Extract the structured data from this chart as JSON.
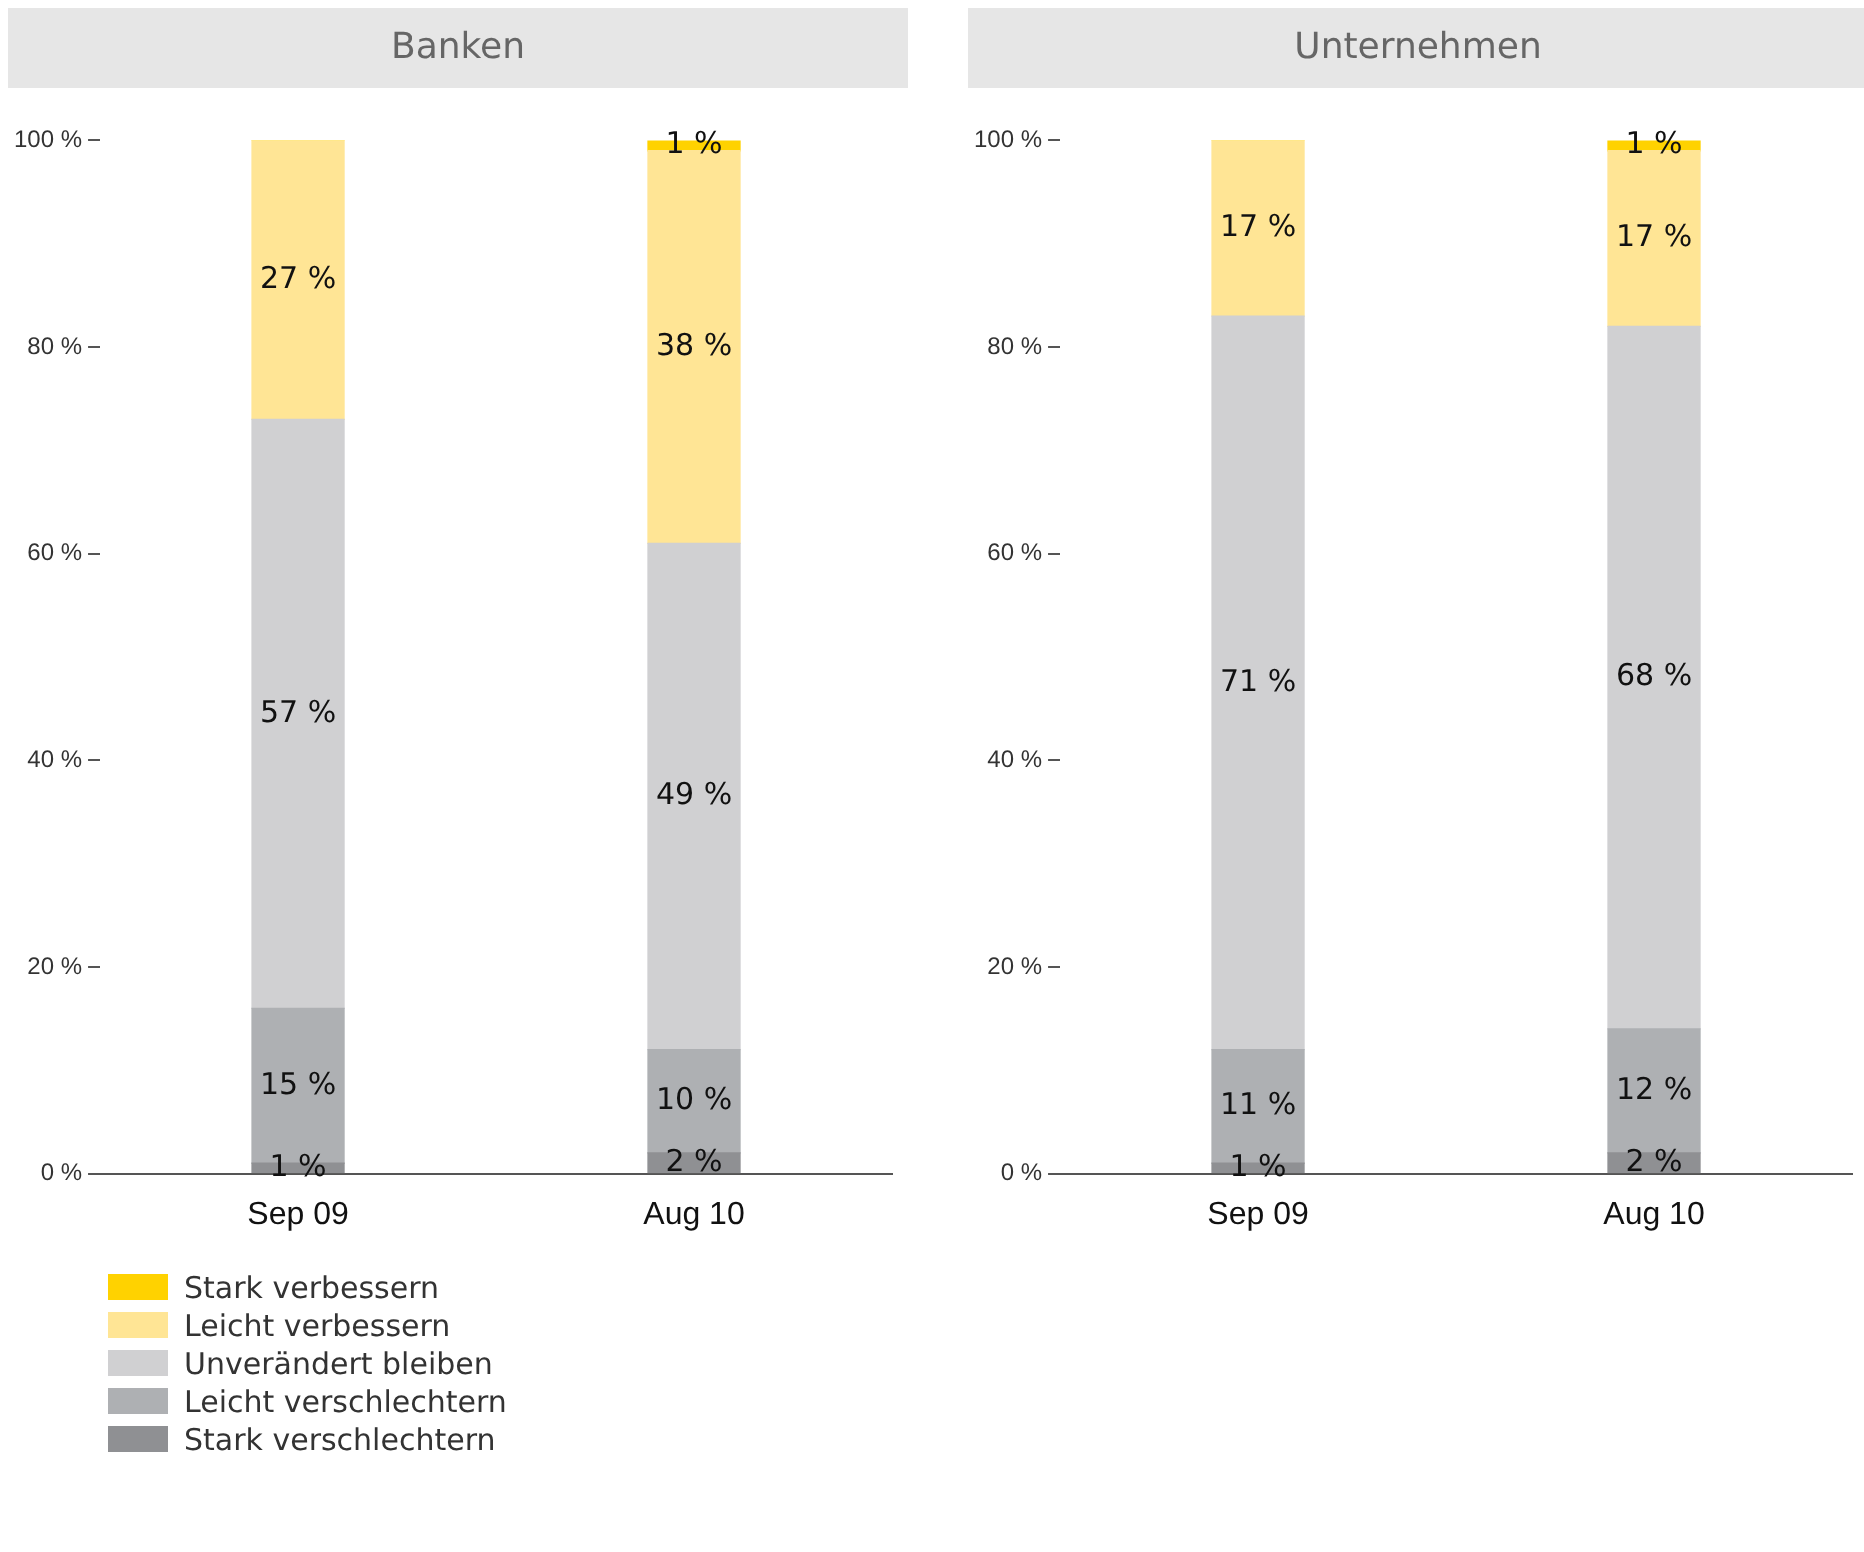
{
  "chart_data": [
    {
      "type": "bar",
      "title": "Banken",
      "categories": [
        "Sep 09",
        "Aug 10"
      ],
      "stacked": true,
      "ylim": [
        0,
        100
      ],
      "yticks": [
        {
          "value": 0,
          "label": "0 %"
        },
        {
          "value": 20,
          "label": "20 %"
        },
        {
          "value": 40,
          "label": "40 %"
        },
        {
          "value": 60,
          "label": "60 %"
        },
        {
          "value": 80,
          "label": "80 %"
        },
        {
          "value": 100,
          "label": "100 %"
        }
      ],
      "legend": "bottom",
      "series": [
        {
          "name": "Stark verschlechtern",
          "color": "#8f9093",
          "values": [
            1,
            2
          ],
          "value_labels": [
            "1 %",
            "2 %"
          ]
        },
        {
          "name": "Leicht verschlechtern",
          "color": "#aeb0b3",
          "values": [
            15,
            10
          ],
          "value_labels": [
            "15 %",
            "10 %"
          ]
        },
        {
          "name": "Unverändert bleiben",
          "color": "#d0d0d2",
          "values": [
            57,
            49
          ],
          "value_labels": [
            "57 %",
            "49 %"
          ]
        },
        {
          "name": "Leicht verbessern",
          "color": "#ffe595",
          "values": [
            27,
            38
          ],
          "value_labels": [
            "27 %",
            "38 %"
          ]
        },
        {
          "name": "Stark verbessern",
          "color": "#ffd200",
          "values": [
            0,
            1
          ],
          "value_labels": [
            null,
            "1 %"
          ]
        }
      ]
    },
    {
      "type": "bar",
      "title": "Unternehmen",
      "categories": [
        "Sep 09",
        "Aug 10"
      ],
      "stacked": true,
      "ylim": [
        0,
        100
      ],
      "yticks": [
        {
          "value": 0,
          "label": "0 %"
        },
        {
          "value": 20,
          "label": "20 %"
        },
        {
          "value": 40,
          "label": "40 %"
        },
        {
          "value": 60,
          "label": "60 %"
        },
        {
          "value": 80,
          "label": "80 %"
        },
        {
          "value": 100,
          "label": "100 %"
        }
      ],
      "series": [
        {
          "color": "#8f9093",
          "values": [
            1,
            2
          ],
          "value_labels": [
            "1 %",
            "2 %"
          ]
        },
        {
          "color": "#aeb0b3",
          "values": [
            11,
            12
          ],
          "value_labels": [
            "11 %",
            "12 %"
          ]
        },
        {
          "color": "#d0d0d2",
          "values": [
            71,
            68
          ],
          "value_labels": [
            "71 %",
            "68 %"
          ]
        },
        {
          "color": "#ffe595",
          "values": [
            17,
            17
          ],
          "value_labels": [
            "17 %",
            "17 %"
          ]
        },
        {
          "color": "#ffd200",
          "values": [
            0,
            1
          ],
          "value_labels": [
            null,
            "1 %"
          ]
        }
      ]
    }
  ]
}
